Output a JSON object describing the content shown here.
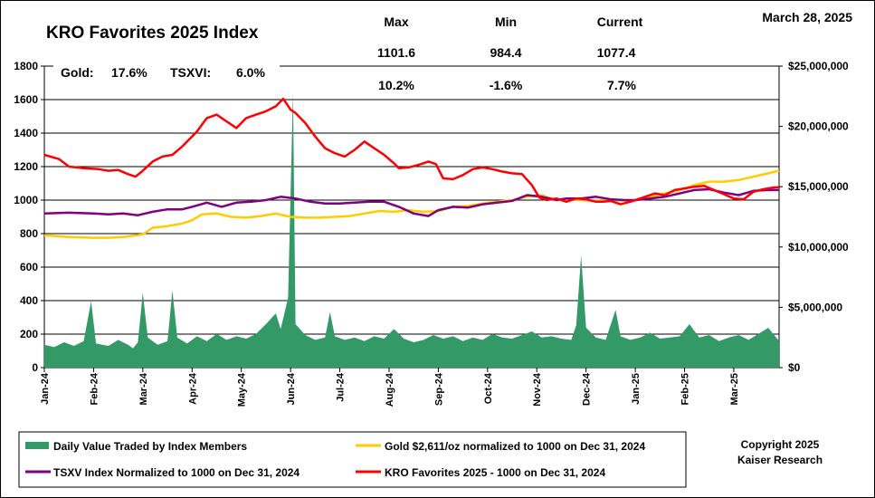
{
  "chart_data": {
    "type": "line",
    "title": "KRO Favorites 2025 Index",
    "date": "March 28, 2025",
    "stats": {
      "max_label": "Max",
      "min_label": "Min",
      "current_label": "Current",
      "max_value": "1101.6",
      "min_value": "984.4",
      "current_value": "1077.4",
      "max_pct": "10.2%",
      "min_pct": "-1.6%",
      "current_pct": "7.7%"
    },
    "perf": {
      "gold_label": "Gold:",
      "gold_value": "17.6%",
      "tsxvi_label": "TSXVI:",
      "tsxvi_value": "6.0%"
    },
    "left_axis": {
      "range": [
        0,
        1800
      ],
      "ticks": [
        "0",
        "200",
        "400",
        "600",
        "800",
        "1000",
        "1200",
        "1400",
        "1600",
        "1800"
      ]
    },
    "right_axis": {
      "range": [
        0,
        25000000
      ],
      "ticks": [
        "$0",
        "$5,000,000",
        "$10,000,000",
        "$15,000,000",
        "$20,000,000",
        "$25,000,000"
      ]
    },
    "x_labels": [
      "Jan-24",
      "Feb-24",
      "Mar-24",
      "Apr-24",
      "May-24",
      "Jun-24",
      "Jul-24",
      "Aug-24",
      "Sep-24",
      "Oct-24",
      "Nov-24",
      "Dec-24",
      "Jan-25",
      "Feb-25",
      "Mar-25"
    ],
    "x_months": [
      0,
      1,
      2,
      3,
      4,
      5,
      6,
      7,
      8,
      9,
      10,
      11,
      12,
      13,
      14
    ],
    "x_range_months": [
      0,
      14.92
    ],
    "grid": "horizontal",
    "series": [
      {
        "name": "KRO Favorites 2025 - 1000 on Dec 31, 2024",
        "color": "#ff0000",
        "axis": "left",
        "points": [
          [
            0,
            1270
          ],
          [
            0.3,
            1245
          ],
          [
            0.5,
            1200
          ],
          [
            0.8,
            1190
          ],
          [
            1.1,
            1185
          ],
          [
            1.3,
            1175
          ],
          [
            1.5,
            1180
          ],
          [
            1.7,
            1155
          ],
          [
            1.85,
            1140
          ],
          [
            2.0,
            1175
          ],
          [
            2.2,
            1230
          ],
          [
            2.4,
            1260
          ],
          [
            2.6,
            1270
          ],
          [
            2.8,
            1320
          ],
          [
            3.0,
            1380
          ],
          [
            3.1,
            1410
          ],
          [
            3.3,
            1490
          ],
          [
            3.5,
            1510
          ],
          [
            3.7,
            1470
          ],
          [
            3.9,
            1430
          ],
          [
            4.1,
            1490
          ],
          [
            4.3,
            1510
          ],
          [
            4.5,
            1530
          ],
          [
            4.7,
            1560
          ],
          [
            4.85,
            1605
          ],
          [
            5.0,
            1540
          ],
          [
            5.1,
            1520
          ],
          [
            5.3,
            1460
          ],
          [
            5.5,
            1380
          ],
          [
            5.7,
            1310
          ],
          [
            5.9,
            1280
          ],
          [
            6.1,
            1260
          ],
          [
            6.3,
            1300
          ],
          [
            6.5,
            1350
          ],
          [
            6.7,
            1310
          ],
          [
            6.9,
            1270
          ],
          [
            7.1,
            1220
          ],
          [
            7.2,
            1190
          ],
          [
            7.4,
            1195
          ],
          [
            7.6,
            1210
          ],
          [
            7.8,
            1230
          ],
          [
            7.95,
            1215
          ],
          [
            8.1,
            1130
          ],
          [
            8.3,
            1125
          ],
          [
            8.5,
            1150
          ],
          [
            8.7,
            1185
          ],
          [
            8.9,
            1195
          ],
          [
            9.1,
            1185
          ],
          [
            9.3,
            1170
          ],
          [
            9.5,
            1160
          ],
          [
            9.7,
            1155
          ],
          [
            9.9,
            1090
          ],
          [
            10.05,
            1015
          ],
          [
            10.2,
            1000
          ],
          [
            10.4,
            1010
          ],
          [
            10.6,
            990
          ],
          [
            10.8,
            1010
          ],
          [
            11.0,
            1005
          ],
          [
            11.2,
            990
          ],
          [
            11.35,
            990
          ],
          [
            11.5,
            995
          ],
          [
            11.7,
            975
          ],
          [
            11.9,
            990
          ],
          [
            12.0,
            1000
          ],
          [
            12.2,
            1020
          ],
          [
            12.4,
            1040
          ],
          [
            12.6,
            1030
          ],
          [
            12.8,
            1060
          ],
          [
            13.0,
            1070
          ],
          [
            13.2,
            1080
          ],
          [
            13.4,
            1085
          ],
          [
            13.6,
            1060
          ],
          [
            13.8,
            1035
          ],
          [
            14.0,
            1010
          ],
          [
            14.2,
            1005
          ],
          [
            14.4,
            1050
          ],
          [
            14.6,
            1065
          ],
          [
            14.8,
            1075
          ],
          [
            14.92,
            1077
          ]
        ]
      },
      {
        "name": "TSXV Index Normalized to 1000 on Dec 31, 2024",
        "color": "#800080",
        "axis": "left",
        "points": [
          [
            0,
            920
          ],
          [
            0.5,
            925
          ],
          [
            1.0,
            920
          ],
          [
            1.3,
            915
          ],
          [
            1.6,
            920
          ],
          [
            1.9,
            910
          ],
          [
            2.2,
            930
          ],
          [
            2.5,
            945
          ],
          [
            2.8,
            945
          ],
          [
            3.0,
            960
          ],
          [
            3.3,
            985
          ],
          [
            3.6,
            960
          ],
          [
            3.9,
            985
          ],
          [
            4.2,
            990
          ],
          [
            4.5,
            1000
          ],
          [
            4.8,
            1020
          ],
          [
            5.1,
            1010
          ],
          [
            5.4,
            990
          ],
          [
            5.7,
            980
          ],
          [
            6.0,
            980
          ],
          [
            6.3,
            985
          ],
          [
            6.6,
            990
          ],
          [
            6.9,
            990
          ],
          [
            7.2,
            960
          ],
          [
            7.5,
            920
          ],
          [
            7.8,
            905
          ],
          [
            8.0,
            940
          ],
          [
            8.3,
            960
          ],
          [
            8.6,
            955
          ],
          [
            8.9,
            975
          ],
          [
            9.2,
            985
          ],
          [
            9.5,
            995
          ],
          [
            9.8,
            1030
          ],
          [
            10.1,
            1020
          ],
          [
            10.4,
            1000
          ],
          [
            10.6,
            1010
          ],
          [
            10.9,
            1010
          ],
          [
            11.2,
            1020
          ],
          [
            11.5,
            1005
          ],
          [
            11.8,
            1000
          ],
          [
            12.0,
            1000
          ],
          [
            12.3,
            1010
          ],
          [
            12.6,
            1020
          ],
          [
            12.9,
            1040
          ],
          [
            13.2,
            1060
          ],
          [
            13.5,
            1065
          ],
          [
            13.8,
            1045
          ],
          [
            14.1,
            1030
          ],
          [
            14.4,
            1055
          ],
          [
            14.7,
            1060
          ],
          [
            14.92,
            1060
          ]
        ]
      },
      {
        "name": "Gold $2,611/oz normalized to 1000 on Dec 31, 2024",
        "color": "#ffcc00",
        "axis": "left",
        "points": [
          [
            0,
            790
          ],
          [
            0.5,
            780
          ],
          [
            1.0,
            775
          ],
          [
            1.3,
            775
          ],
          [
            1.6,
            780
          ],
          [
            2.0,
            795
          ],
          [
            2.2,
            835
          ],
          [
            2.5,
            845
          ],
          [
            2.8,
            860
          ],
          [
            3.0,
            880
          ],
          [
            3.2,
            915
          ],
          [
            3.5,
            920
          ],
          [
            3.8,
            900
          ],
          [
            4.1,
            895
          ],
          [
            4.4,
            905
          ],
          [
            4.7,
            920
          ],
          [
            5.0,
            900
          ],
          [
            5.3,
            895
          ],
          [
            5.6,
            895
          ],
          [
            5.9,
            900
          ],
          [
            6.2,
            905
          ],
          [
            6.5,
            920
          ],
          [
            6.8,
            935
          ],
          [
            7.1,
            930
          ],
          [
            7.4,
            940
          ],
          [
            7.7,
            930
          ],
          [
            8.0,
            935
          ],
          [
            8.3,
            960
          ],
          [
            8.6,
            965
          ],
          [
            8.9,
            980
          ],
          [
            9.2,
            990
          ],
          [
            9.5,
            1000
          ],
          [
            9.8,
            1020
          ],
          [
            10.1,
            1030
          ],
          [
            10.4,
            1000
          ],
          [
            10.6,
            1005
          ],
          [
            10.9,
            1000
          ],
          [
            11.2,
            995
          ],
          [
            11.5,
            1000
          ],
          [
            11.8,
            995
          ],
          [
            12.0,
            1000
          ],
          [
            12.3,
            1020
          ],
          [
            12.6,
            1040
          ],
          [
            12.9,
            1060
          ],
          [
            13.2,
            1090
          ],
          [
            13.5,
            1110
          ],
          [
            13.8,
            1110
          ],
          [
            14.1,
            1120
          ],
          [
            14.4,
            1140
          ],
          [
            14.7,
            1160
          ],
          [
            14.92,
            1176
          ]
        ]
      },
      {
        "name": "Daily Value Traded by Index Members",
        "color": "#339966",
        "axis": "right",
        "type": "area",
        "points": [
          [
            0,
            1900000
          ],
          [
            0.2,
            1700000
          ],
          [
            0.4,
            2100000
          ],
          [
            0.6,
            1800000
          ],
          [
            0.8,
            2200000
          ],
          [
            0.95,
            5500000
          ],
          [
            1.05,
            2000000
          ],
          [
            1.3,
            1800000
          ],
          [
            1.5,
            2300000
          ],
          [
            1.7,
            1900000
          ],
          [
            1.8,
            1600000
          ],
          [
            1.9,
            2100000
          ],
          [
            2.0,
            6200000
          ],
          [
            2.1,
            2500000
          ],
          [
            2.3,
            1900000
          ],
          [
            2.5,
            2200000
          ],
          [
            2.6,
            6400000
          ],
          [
            2.7,
            2500000
          ],
          [
            2.9,
            2000000
          ],
          [
            3.1,
            2600000
          ],
          [
            3.3,
            2200000
          ],
          [
            3.5,
            2800000
          ],
          [
            3.7,
            2300000
          ],
          [
            3.9,
            2600000
          ],
          [
            4.1,
            2400000
          ],
          [
            4.3,
            2800000
          ],
          [
            4.5,
            3600000
          ],
          [
            4.7,
            4500000
          ],
          [
            4.8,
            3200000
          ],
          [
            4.95,
            5800000
          ],
          [
            5.05,
            22800000
          ],
          [
            5.1,
            3600000
          ],
          [
            5.3,
            2700000
          ],
          [
            5.5,
            2300000
          ],
          [
            5.7,
            2500000
          ],
          [
            5.8,
            4600000
          ],
          [
            5.9,
            2600000
          ],
          [
            6.1,
            2300000
          ],
          [
            6.3,
            2500000
          ],
          [
            6.5,
            2200000
          ],
          [
            6.7,
            2600000
          ],
          [
            6.9,
            2400000
          ],
          [
            7.1,
            3200000
          ],
          [
            7.3,
            2400000
          ],
          [
            7.5,
            2100000
          ],
          [
            7.7,
            2300000
          ],
          [
            7.9,
            2700000
          ],
          [
            8.1,
            2400000
          ],
          [
            8.3,
            2600000
          ],
          [
            8.5,
            2200000
          ],
          [
            8.7,
            2500000
          ],
          [
            8.9,
            2300000
          ],
          [
            9.1,
            2800000
          ],
          [
            9.3,
            2500000
          ],
          [
            9.5,
            2400000
          ],
          [
            9.7,
            2700000
          ],
          [
            9.9,
            3000000
          ],
          [
            10.1,
            2500000
          ],
          [
            10.3,
            2600000
          ],
          [
            10.5,
            2400000
          ],
          [
            10.7,
            2300000
          ],
          [
            10.8,
            3500000
          ],
          [
            10.9,
            9300000
          ],
          [
            11.0,
            3300000
          ],
          [
            11.2,
            2500000
          ],
          [
            11.4,
            2300000
          ],
          [
            11.6,
            4800000
          ],
          [
            11.7,
            2600000
          ],
          [
            11.9,
            2300000
          ],
          [
            12.1,
            2500000
          ],
          [
            12.3,
            2900000
          ],
          [
            12.5,
            2400000
          ],
          [
            12.7,
            2500000
          ],
          [
            12.9,
            2600000
          ],
          [
            13.1,
            3600000
          ],
          [
            13.3,
            2500000
          ],
          [
            13.5,
            2700000
          ],
          [
            13.7,
            2200000
          ],
          [
            13.9,
            2500000
          ],
          [
            14.1,
            2700000
          ],
          [
            14.3,
            2300000
          ],
          [
            14.5,
            2800000
          ],
          [
            14.7,
            3300000
          ],
          [
            14.92,
            2200000
          ]
        ]
      }
    ],
    "legend": {
      "placement": "bottom",
      "volume": "Daily Value Traded by Index Members",
      "gold": "Gold $2,611/oz normalized to 1000 on Dec 31, 2024",
      "tsxv": "TSXV Index Normalized to 1000 on Dec 31, 2024",
      "kro": "KRO Favorites 2025 - 1000 on Dec 31, 2024"
    },
    "copyright": {
      "line1": "Copyright 2025",
      "line2": "Kaiser Research"
    }
  }
}
